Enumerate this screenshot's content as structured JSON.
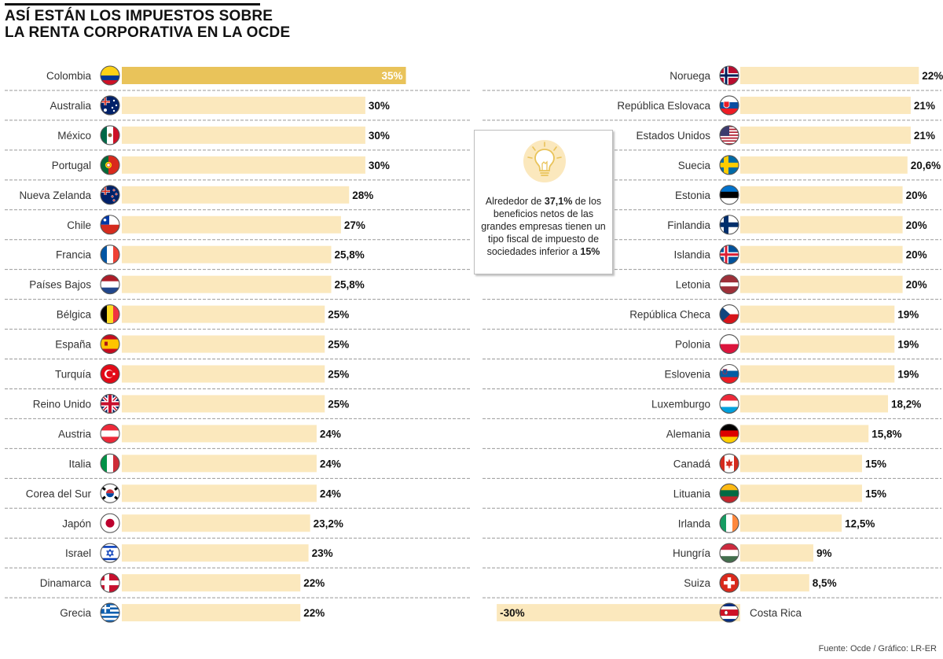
{
  "title": {
    "line1": "ASÍ ESTÁN LOS IMPUESTOS SOBRE",
    "line2": "LA RENTA CORPORATIVA EN LA OCDE"
  },
  "callout": {
    "prefix": "Alrededor de ",
    "value1": "37,1%",
    "middle": " de los beneficios netos de las grandes empresas tienen un tipo fiscal de impuesto de sociedades inferior a ",
    "value2": "15%"
  },
  "source": "Fuente: Ocde / Gráfico: LR-ER",
  "colors": {
    "bar": "#fbe8bd",
    "highlight": "#e9c35a",
    "divider": "#999999"
  },
  "chart_data": {
    "type": "bar",
    "title": "ASÍ ESTÁN LOS IMPUESTOS SOBRE LA RENTA CORPORATIVA EN LA OCDE",
    "unit": "%",
    "series_left": [
      {
        "country": "Colombia",
        "value": 35,
        "label": "35%",
        "flag": "colombia-flag"
      },
      {
        "country": "Australia",
        "value": 30,
        "label": "30%",
        "flag": "australia-flag"
      },
      {
        "country": "México",
        "value": 30,
        "label": "30%",
        "flag": "mexico-flag"
      },
      {
        "country": "Portugal",
        "value": 30,
        "label": "30%",
        "flag": "portugal-flag"
      },
      {
        "country": "Nueva Zelanda",
        "value": 28,
        "label": "28%",
        "flag": "new-zealand-flag"
      },
      {
        "country": "Chile",
        "value": 27,
        "label": "27%",
        "flag": "chile-flag"
      },
      {
        "country": "Francia",
        "value": 25.8,
        "label": "25,8%",
        "flag": "france-flag"
      },
      {
        "country": "Países Bajos",
        "value": 25.8,
        "label": "25,8%",
        "flag": "netherlands-flag"
      },
      {
        "country": "Bélgica",
        "value": 25,
        "label": "25%",
        "flag": "belgium-flag"
      },
      {
        "country": "España",
        "value": 25,
        "label": "25%",
        "flag": "spain-flag"
      },
      {
        "country": "Turquía",
        "value": 25,
        "label": "25%",
        "flag": "turkey-flag"
      },
      {
        "country": "Reino Unido",
        "value": 25,
        "label": "25%",
        "flag": "uk-flag"
      },
      {
        "country": "Austria",
        "value": 24,
        "label": "24%",
        "flag": "austria-flag"
      },
      {
        "country": "Italia",
        "value": 24,
        "label": "24%",
        "flag": "italy-flag"
      },
      {
        "country": "Corea del Sur",
        "value": 24,
        "label": "24%",
        "flag": "south-korea-flag"
      },
      {
        "country": "Japón",
        "value": 23.2,
        "label": "23,2%",
        "flag": "japan-flag"
      },
      {
        "country": "Israel",
        "value": 23,
        "label": "23%",
        "flag": "israel-flag"
      },
      {
        "country": "Dinamarca",
        "value": 22,
        "label": "22%",
        "flag": "denmark-flag"
      },
      {
        "country": "Grecia",
        "value": 22,
        "label": "22%",
        "flag": "greece-flag"
      }
    ],
    "series_right": [
      {
        "country": "Noruega",
        "value": 22,
        "label": "22%",
        "flag": "norway-flag"
      },
      {
        "country": "República Eslovaca",
        "value": 21,
        "label": "21%",
        "flag": "slovakia-flag"
      },
      {
        "country": "Estados Unidos",
        "value": 21,
        "label": "21%",
        "flag": "usa-flag"
      },
      {
        "country": "Suecia",
        "value": 20.6,
        "label": "20,6%",
        "flag": "sweden-flag"
      },
      {
        "country": "Estonia",
        "value": 20,
        "label": "20%",
        "flag": "estonia-flag"
      },
      {
        "country": "Finlandia",
        "value": 20,
        "label": "20%",
        "flag": "finland-flag"
      },
      {
        "country": "Islandia",
        "value": 20,
        "label": "20%",
        "flag": "iceland-flag"
      },
      {
        "country": "Letonia",
        "value": 20,
        "label": "20%",
        "flag": "latvia-flag"
      },
      {
        "country": "República Checa",
        "value": 19,
        "label": "19%",
        "flag": "czech-flag"
      },
      {
        "country": "Polonia",
        "value": 19,
        "label": "19%",
        "flag": "poland-flag"
      },
      {
        "country": "Eslovenia",
        "value": 19,
        "label": "19%",
        "flag": "slovenia-flag"
      },
      {
        "country": "Luxemburgo",
        "value": 18.2,
        "label": "18,2%",
        "flag": "luxembourg-flag"
      },
      {
        "country": "Alemania",
        "value": 15.8,
        "label": "15,8%",
        "flag": "germany-flag"
      },
      {
        "country": "Canadá",
        "value": 15,
        "label": "15%",
        "flag": "canada-flag"
      },
      {
        "country": "Lituania",
        "value": 15,
        "label": "15%",
        "flag": "lithuania-flag"
      },
      {
        "country": "Irlanda",
        "value": 12.5,
        "label": "12,5%",
        "flag": "ireland-flag"
      },
      {
        "country": "Hungría",
        "value": 9,
        "label": "9%",
        "flag": "hungary-flag"
      },
      {
        "country": "Suiza",
        "value": 8.5,
        "label": "8,5%",
        "flag": "switzerland-flag"
      },
      {
        "country": "Costa Rica",
        "value": -30,
        "label": "-30%",
        "flag": "costa-rica-flag"
      }
    ]
  }
}
